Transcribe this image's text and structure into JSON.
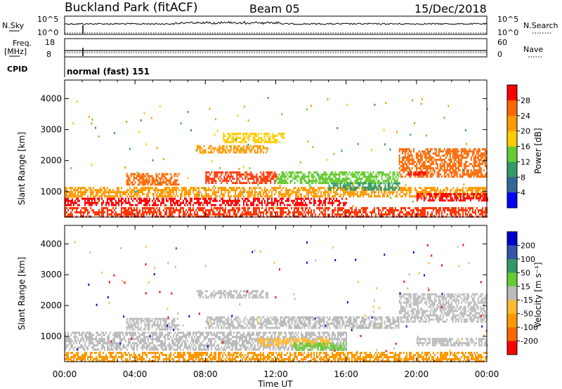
{
  "header": {
    "station_title": "Buckland Park (fitACF)",
    "beam_label": "Beam 05",
    "date_label": "15/Dec/2018"
  },
  "strips": {
    "nsky": {
      "left_label": "N.Sky",
      "left_ticks": [
        "10^5",
        "10^0"
      ],
      "right_ticks": [
        "10^5",
        "10^0"
      ],
      "right_label": "N.Search"
    },
    "freq": {
      "left_label_1": "Freq.",
      "left_label_2": "[MHz]",
      "left_ticks": [
        "18",
        "8"
      ],
      "right_ticks": [
        "60",
        "0"
      ],
      "right_label": "Nave"
    },
    "cpid": {
      "label": "CPID",
      "value": "normal (fast) 151"
    }
  },
  "power_colorbar": {
    "label": "Power [dB]",
    "ticks": [
      "28",
      "24",
      "20",
      "16",
      "12",
      "8",
      "4"
    ],
    "colors": [
      "#ff0000",
      "#ff6600",
      "#ff9900",
      "#ffcc00",
      "#66cc33",
      "#339966",
      "#336699",
      "#0000ff"
    ]
  },
  "velocity_colorbar": {
    "label": "Velocity [m s⁻¹]",
    "ticks": [
      "200",
      "100",
      "50",
      "15",
      "-15",
      "-50",
      "-100",
      "-200"
    ],
    "colors": [
      "#0000cc",
      "#3355aa",
      "#339966",
      "#66cc33",
      "#bbbbbb",
      "#ffbb33",
      "#ff9900",
      "#ff6600",
      "#ff0000"
    ]
  },
  "chart_data": [
    {
      "type": "heatmap",
      "panel": "power",
      "ylabel": "Slant Range [km]",
      "xlabel": "Time UT",
      "x_ticks": [
        "00:00",
        "04:00",
        "08:00",
        "12:00",
        "16:00",
        "20:00",
        "00:00"
      ],
      "y_ticks": [
        1000,
        2000,
        3000,
        4000
      ],
      "xlim_hours": [
        0,
        24
      ],
      "ylim_km": [
        180,
        4600
      ],
      "scatter_regions": [
        {
          "t0": 0,
          "t1": 24,
          "r0": 180,
          "r1": 500,
          "color": "#ff3300"
        },
        {
          "t0": 0,
          "t1": 16,
          "r0": 550,
          "r1": 800,
          "color": "#ff0000"
        },
        {
          "t0": 0,
          "t1": 24,
          "r0": 850,
          "r1": 1150,
          "color": "#ff9900"
        },
        {
          "t0": 3.5,
          "t1": 6.5,
          "r0": 1250,
          "r1": 1600,
          "color": "#ff6600"
        },
        {
          "t0": 8,
          "t1": 12,
          "r0": 1300,
          "r1": 1650,
          "color": "#ff3300"
        },
        {
          "t0": 7.5,
          "t1": 11.5,
          "r0": 2250,
          "r1": 2500,
          "color": "#ff9900"
        },
        {
          "t0": 9,
          "t1": 12.5,
          "r0": 2600,
          "r1": 2900,
          "color": "#ffcc00"
        },
        {
          "t0": 12,
          "t1": 19,
          "r0": 1250,
          "r1": 1650,
          "color": "#66cc33"
        },
        {
          "t0": 15,
          "t1": 19,
          "r0": 1050,
          "r1": 1300,
          "color": "#339966"
        },
        {
          "t0": 19,
          "t1": 24,
          "r0": 1450,
          "r1": 2400,
          "color": "#ff6600"
        },
        {
          "t0": 19.5,
          "t1": 20.5,
          "r0": 1550,
          "r1": 1650,
          "color": "#ff0000"
        },
        {
          "t0": 20,
          "t1": 24,
          "r0": 700,
          "r1": 950,
          "color": "#ff0000"
        }
      ]
    },
    {
      "type": "heatmap",
      "panel": "velocity",
      "ylabel": "Slant Range [km]",
      "xlabel": "Time UT",
      "x_ticks": [
        "00:00",
        "04:00",
        "08:00",
        "12:00",
        "16:00",
        "20:00",
        "00:00"
      ],
      "y_ticks": [
        1000,
        2000,
        3000,
        4000
      ],
      "xlim_hours": [
        0,
        24
      ],
      "ylim_km": [
        180,
        4600
      ],
      "scatter_regions": [
        {
          "t0": 0,
          "t1": 24,
          "r0": 180,
          "r1": 500,
          "color": "#ff9900"
        },
        {
          "t0": 0,
          "t1": 16,
          "r0": 550,
          "r1": 1150,
          "color": "#bbbbbb"
        },
        {
          "t0": 11,
          "t1": 15,
          "r0": 700,
          "r1": 950,
          "color": "#ffbb33"
        },
        {
          "t0": 13,
          "t1": 16,
          "r0": 550,
          "r1": 800,
          "color": "#66cc33"
        },
        {
          "t0": 3.5,
          "t1": 6.5,
          "r0": 1250,
          "r1": 1600,
          "color": "#bbbbbb"
        },
        {
          "t0": 8,
          "t1": 12,
          "r0": 1300,
          "r1": 1650,
          "color": "#bbbbbb"
        },
        {
          "t0": 7.5,
          "t1": 11.5,
          "r0": 2250,
          "r1": 2500,
          "color": "#bbbbbb"
        },
        {
          "t0": 12,
          "t1": 19,
          "r0": 1250,
          "r1": 1650,
          "color": "#bbbbbb"
        },
        {
          "t0": 19,
          "t1": 24,
          "r0": 1450,
          "r1": 2400,
          "color": "#bbbbbb"
        },
        {
          "t0": 20,
          "t1": 24,
          "r0": 700,
          "r1": 950,
          "color": "#bbbbbb"
        }
      ]
    }
  ]
}
